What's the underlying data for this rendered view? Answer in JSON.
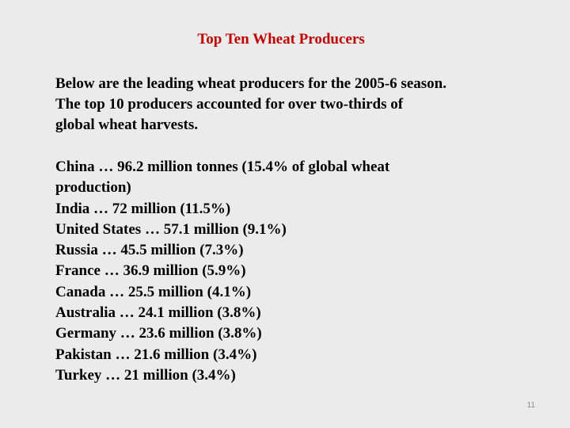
{
  "slide": {
    "title": "Top Ten Wheat Producers",
    "title_color": "#c00000",
    "intro_lines": [
      "Below are the leading wheat producers for the 2005-6 season.",
      "The top 10 producers accounted for over two-thirds of",
      "global wheat harvests."
    ],
    "list_lines": [
      "China … 96.2 million tonnes (15.4% of global wheat",
      "production)",
      "India … 72 million (11.5%)",
      "United States … 57.1 million (9.1%)",
      "Russia … 45.5 million (7.3%)",
      "France … 36.9 million (5.9%)",
      "Canada … 25.5 million (4.1%)",
      "Australia … 24.1 million (3.8%)",
      "Germany … 23.6 million (3.8%)",
      "Pakistan … 21.6 million (3.4%)",
      "Turkey … 21 million (3.4%)"
    ],
    "page_number": "11"
  }
}
